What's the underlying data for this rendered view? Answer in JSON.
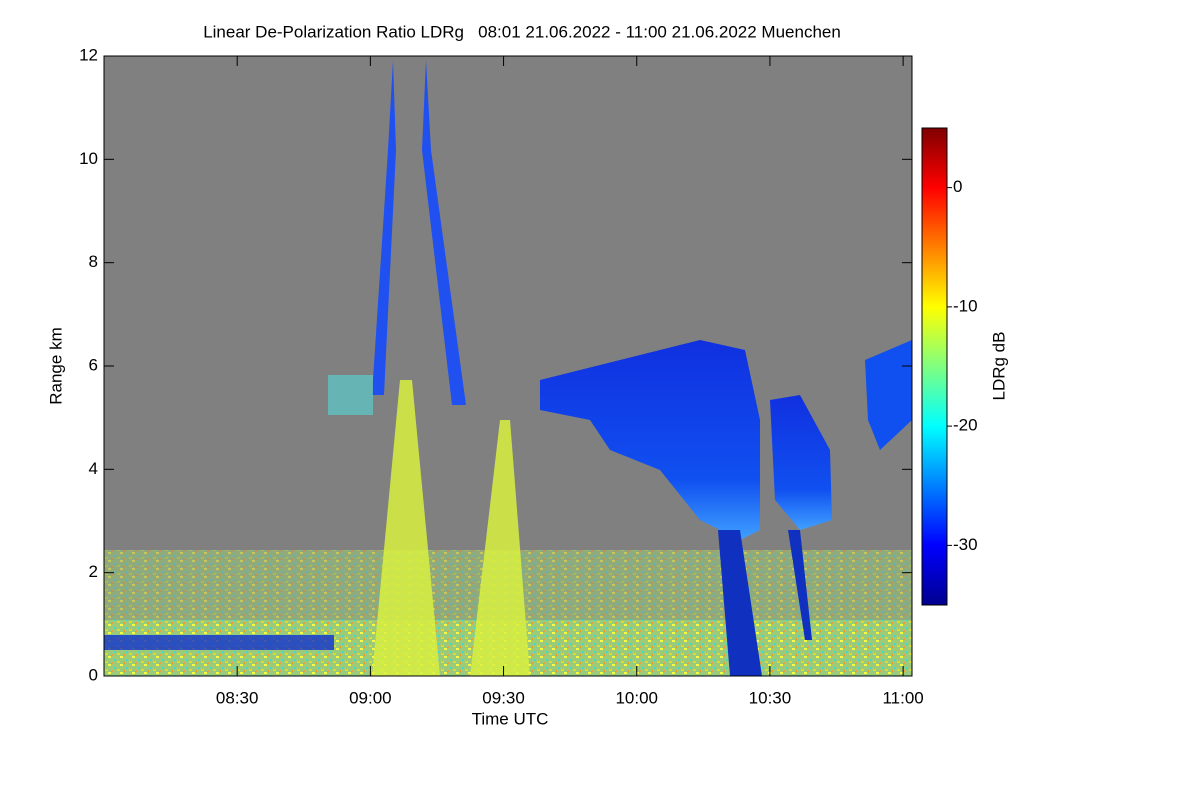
{
  "chart_data": {
    "type": "heatmap",
    "title": "Linear De-Polarization Ratio LDRg   08:01 21.06.2022 - 11:00 21.06.2022 Muenchen",
    "x_label": "Time UTC",
    "y_label": "Range km",
    "xlim": [
      480,
      662
    ],
    "xticks": [
      {
        "value": 510,
        "label": "08:30"
      },
      {
        "value": 540,
        "label": "09:00"
      },
      {
        "value": 570,
        "label": "09:30"
      },
      {
        "value": 600,
        "label": "10:00"
      },
      {
        "value": 630,
        "label": "10:30"
      },
      {
        "value": 660,
        "label": "11:00"
      }
    ],
    "ylim": [
      0,
      12
    ],
    "yticks": [
      0,
      2,
      4,
      6,
      8,
      10,
      12
    ],
    "colorbar": {
      "label": "LDRg dB",
      "lim": [
        -35,
        5
      ],
      "ticks": [
        -30,
        -20,
        -10,
        0
      ]
    }
  }
}
